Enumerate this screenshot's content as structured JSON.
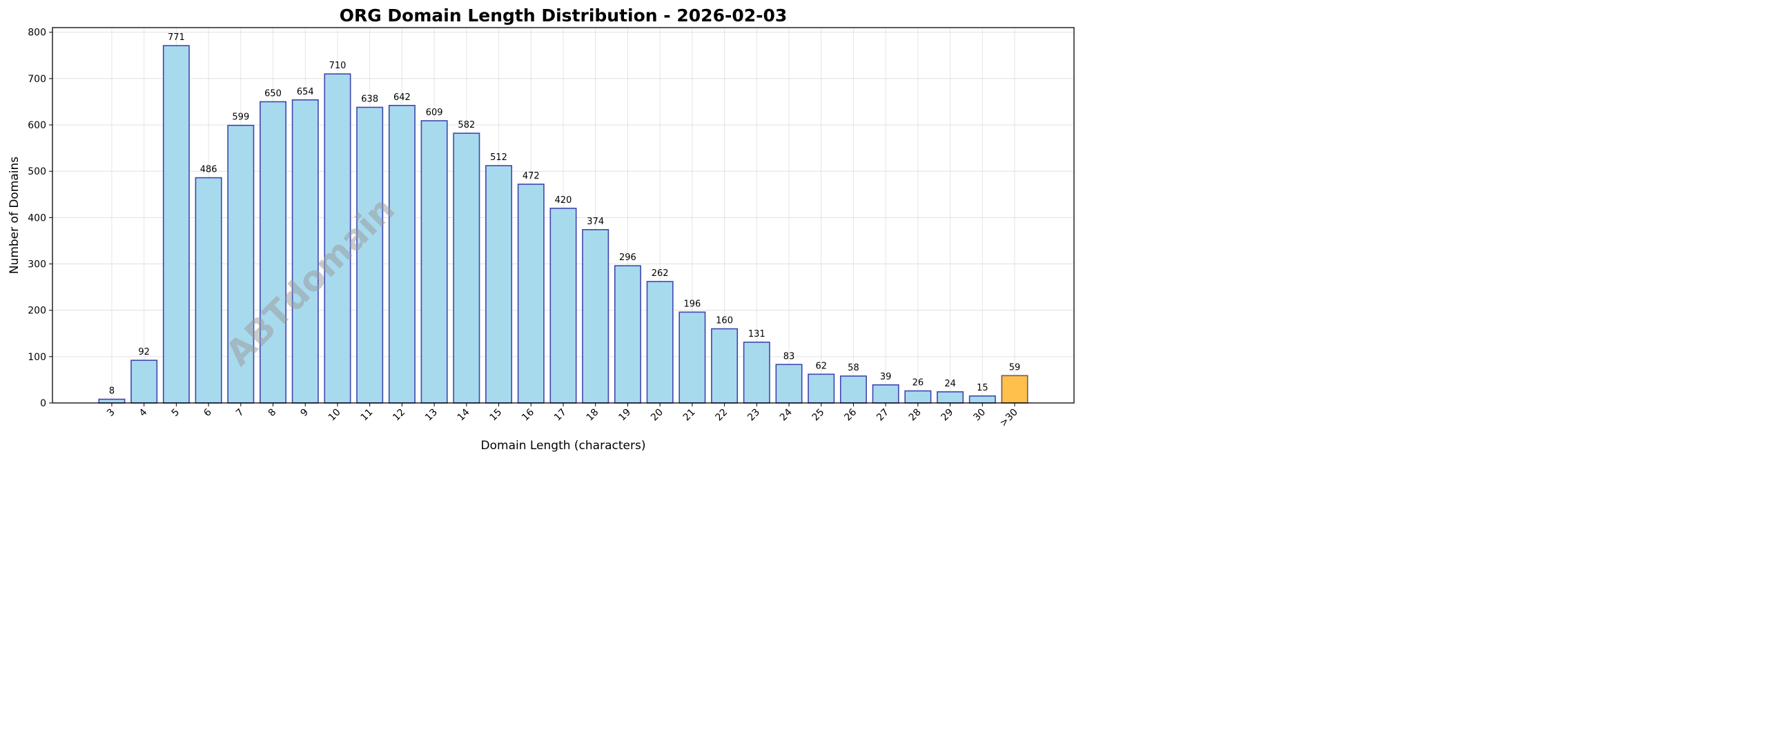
{
  "chart_data": {
    "type": "bar",
    "title": "ORG Domain Length Distribution - 2026-02-03",
    "xlabel": "Domain Length (characters)",
    "ylabel": "Number of Domains",
    "categories": [
      "3",
      "4",
      "5",
      "6",
      "7",
      "8",
      "9",
      "10",
      "11",
      "12",
      "13",
      "14",
      "15",
      "16",
      "17",
      "18",
      "19",
      "20",
      "21",
      "22",
      "23",
      "24",
      "25",
      "26",
      "27",
      "28",
      "29",
      "30",
      ">30"
    ],
    "values": [
      8,
      92,
      771,
      486,
      599,
      650,
      654,
      710,
      638,
      642,
      609,
      582,
      512,
      472,
      420,
      374,
      296,
      262,
      196,
      160,
      131,
      83,
      62,
      58,
      39,
      26,
      24,
      15,
      59
    ],
    "ylim": [
      0,
      810
    ],
    "yticks": [
      0,
      100,
      200,
      300,
      400,
      500,
      600,
      700,
      800
    ],
    "grid": true,
    "watermark": "ABTdomain",
    "colors": {
      "bar": "#a8daee",
      "bar_edge": "#3f44b0",
      "highlight_bar": "#ffc04c",
      "highlight_edge": "#6a5a7a"
    },
    "highlight_category": ">30"
  }
}
